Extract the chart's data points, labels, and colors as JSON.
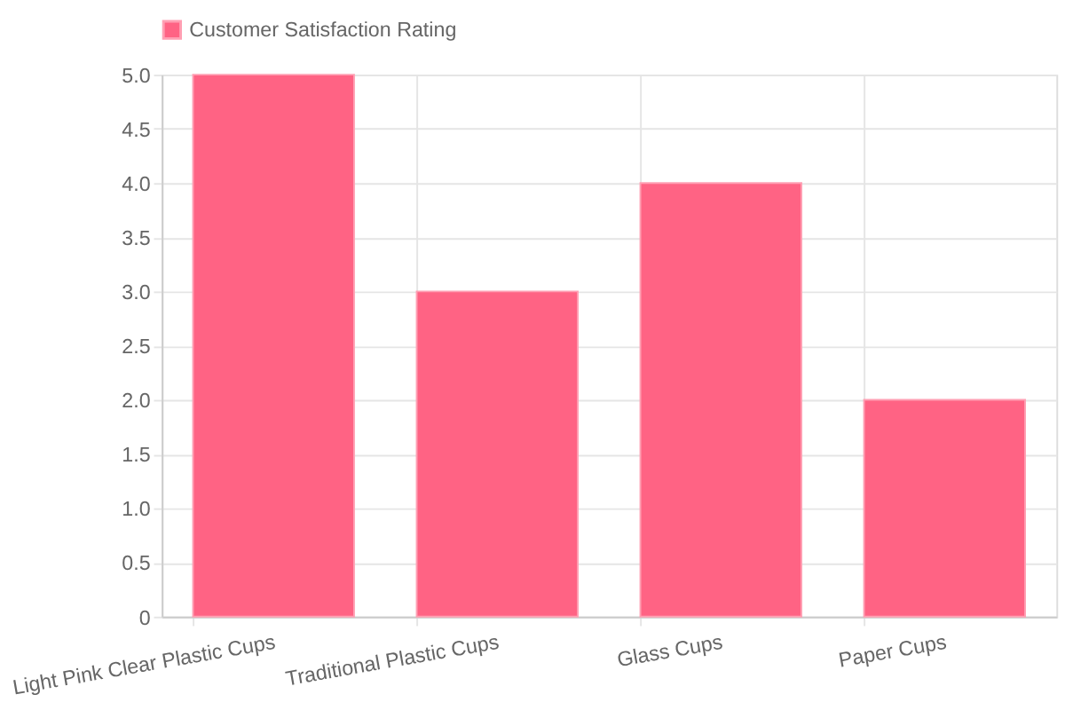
{
  "chart_data": {
    "type": "bar",
    "categories": [
      "Light Pink Clear Plastic Cups",
      "Traditional Plastic Cups",
      "Glass Cups",
      "Paper Cups"
    ],
    "series": [
      {
        "name": "Customer Satisfaction Rating",
        "color": "#ff6384",
        "values": [
          5,
          3,
          4,
          2
        ]
      }
    ],
    "ylim": [
      0,
      5
    ],
    "yticks": [
      0,
      0.5,
      {
        "value": 1,
        "label": "1.0"
      },
      1.5,
      {
        "value": 2,
        "label": "2.0"
      },
      2.5,
      {
        "value": 3,
        "label": "3.0"
      },
      3.5,
      {
        "value": 4,
        "label": "4.0"
      },
      4.5,
      {
        "value": 5,
        "label": "5.0"
      }
    ],
    "grid": true,
    "legend": "top"
  }
}
